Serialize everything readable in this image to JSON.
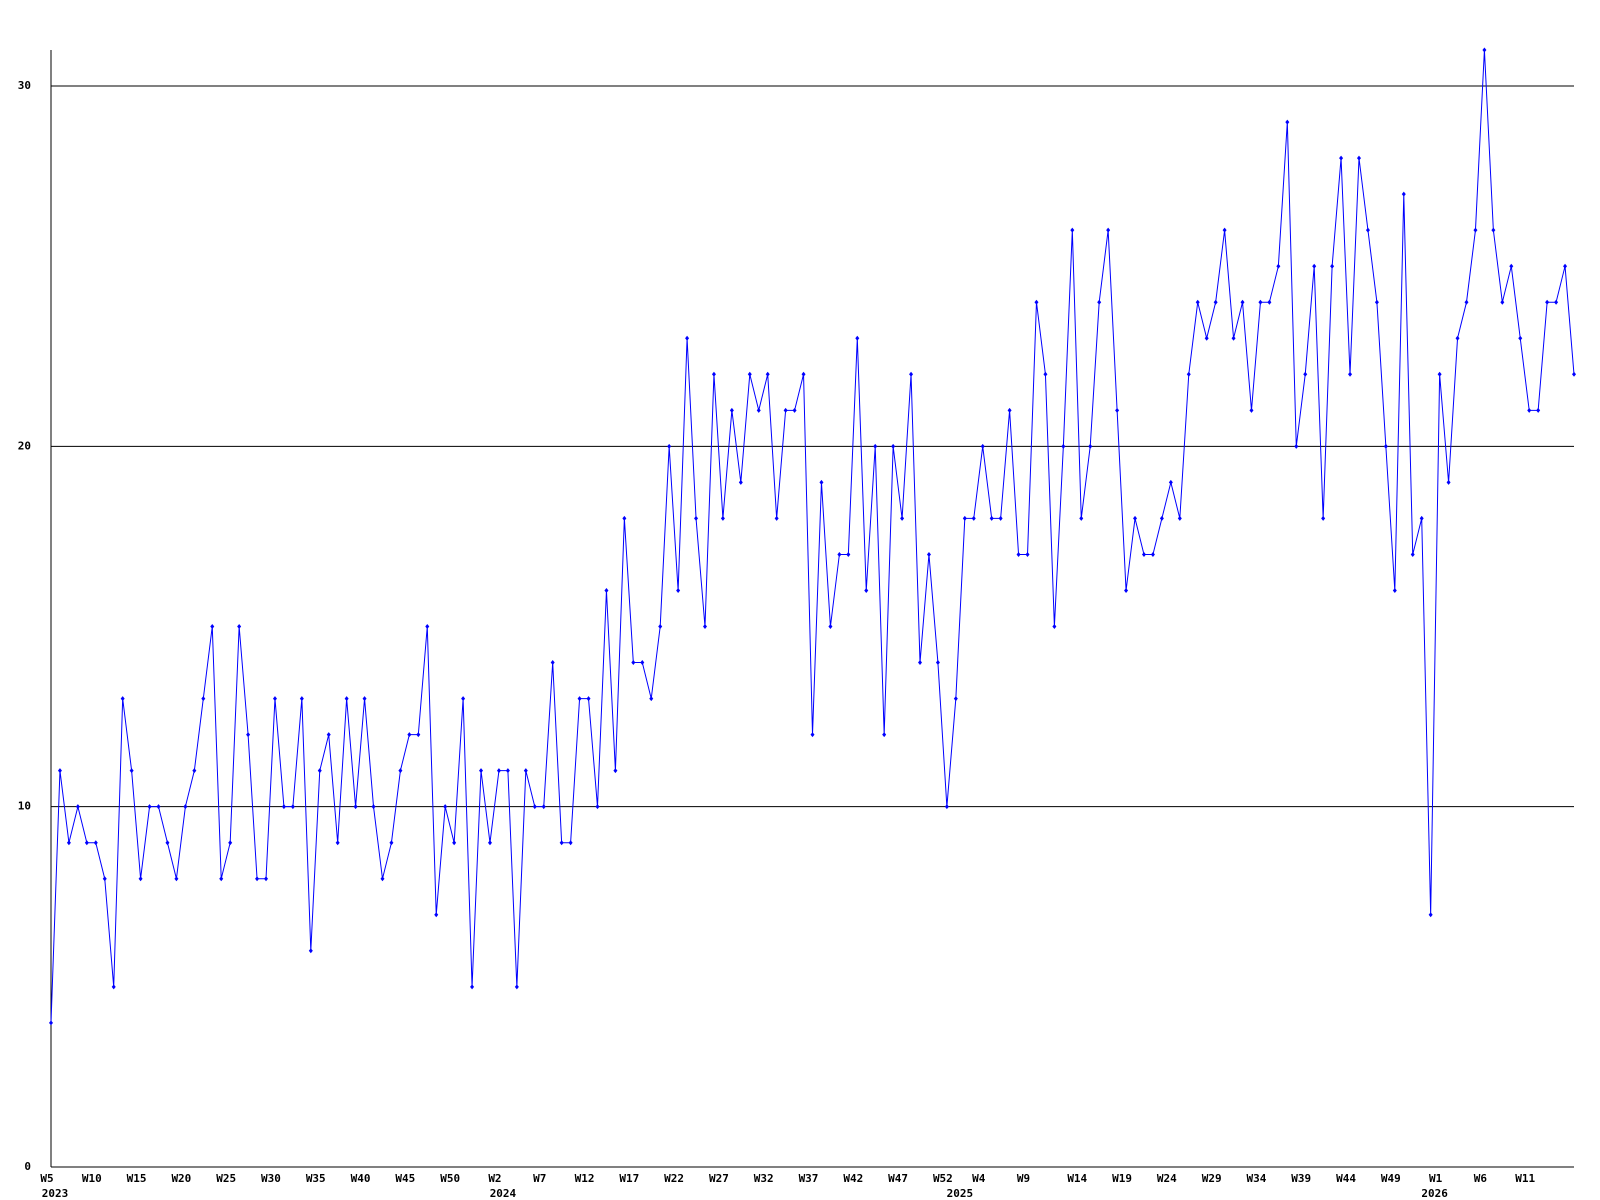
{
  "chart_data": {
    "type": "line",
    "categories": [
      "W5",
      null,
      null,
      null,
      null,
      "W10",
      null,
      null,
      null,
      null,
      "W15",
      null,
      null,
      null,
      null,
      "W20",
      null,
      null,
      null,
      null,
      "W25",
      null,
      null,
      null,
      null,
      "W30",
      null,
      null,
      null,
      null,
      "W35",
      null,
      null,
      null,
      null,
      "W40",
      null,
      null,
      null,
      null,
      "W45",
      null,
      null,
      null,
      null,
      "W50",
      null,
      null,
      null,
      null,
      "W2",
      null,
      null,
      null,
      null,
      "W7",
      null,
      null,
      null,
      null,
      "W12",
      null,
      null,
      null,
      null,
      "W17",
      null,
      null,
      null,
      null,
      "W22",
      null,
      null,
      null,
      null,
      "W27",
      null,
      null,
      null,
      null,
      "W32",
      null,
      null,
      null,
      null,
      "W37",
      null,
      null,
      null,
      null,
      "W42",
      null,
      null,
      null,
      null,
      "W47",
      null,
      null,
      null,
      null,
      "W52",
      null,
      null,
      null,
      "W4",
      null,
      null,
      null,
      null,
      "W9",
      null,
      null,
      null,
      null,
      null,
      "W14",
      null,
      null,
      null,
      null,
      "W19",
      null,
      null,
      null,
      null,
      "W24",
      null,
      null,
      null,
      null,
      "W29",
      null,
      null,
      null,
      null,
      "W34",
      null,
      null,
      null,
      null,
      "W39",
      null,
      null,
      null,
      null,
      "W44",
      null,
      null,
      null,
      null,
      "W49",
      null,
      null,
      null,
      null,
      "W1",
      null,
      null,
      null,
      null,
      "W6",
      null,
      null,
      null,
      null,
      "W11",
      null,
      null,
      null,
      null,
      null
    ],
    "category_years": [
      "2023",
      null,
      null,
      null,
      null,
      null,
      null,
      null,
      null,
      null,
      null,
      null,
      null,
      null,
      null,
      null,
      null,
      null,
      null,
      null,
      null,
      null,
      null,
      null,
      null,
      null,
      null,
      null,
      null,
      null,
      null,
      null,
      null,
      null,
      null,
      null,
      null,
      null,
      null,
      null,
      null,
      null,
      null,
      null,
      null,
      null,
      null,
      null,
      null,
      null,
      "2024",
      null,
      null,
      null,
      null,
      null,
      null,
      null,
      null,
      null,
      null,
      null,
      null,
      null,
      null,
      null,
      null,
      null,
      null,
      null,
      null,
      null,
      null,
      null,
      null,
      null,
      null,
      null,
      null,
      null,
      null,
      null,
      null,
      null,
      null,
      null,
      null,
      null,
      null,
      null,
      null,
      null,
      null,
      null,
      null,
      null,
      null,
      null,
      null,
      null,
      null,
      "2025",
      null,
      null,
      null,
      null,
      null,
      null,
      null,
      null,
      null,
      null,
      null,
      null,
      null,
      null,
      null,
      null,
      null,
      null,
      null,
      null,
      null,
      null,
      null,
      null,
      null,
      null,
      null,
      null,
      null,
      null,
      null,
      null,
      null,
      null,
      null,
      null,
      null,
      null,
      null,
      null,
      null,
      null,
      null,
      null,
      null,
      null,
      null,
      null,
      null,
      null,
      null,
      null,
      "2026",
      null,
      null,
      null,
      null,
      null,
      null,
      null,
      null,
      null,
      null,
      null,
      null,
      null,
      null,
      null
    ],
    "series": [
      {
        "color": "#0000ff",
        "values": [
          4,
          11,
          9,
          10,
          9,
          9,
          8,
          5,
          13,
          11,
          8,
          10,
          10,
          9,
          8,
          10,
          11,
          13,
          15,
          8,
          9,
          15,
          12,
          8,
          8,
          13,
          10,
          10,
          13,
          6,
          11,
          12,
          9,
          13,
          10,
          13,
          10,
          8,
          9,
          11,
          12,
          12,
          15,
          7,
          10,
          9,
          13,
          5,
          11,
          9,
          11,
          11,
          5,
          11,
          10,
          10,
          14,
          9,
          9,
          13,
          13,
          10,
          16,
          11,
          18,
          14,
          14,
          13,
          15,
          20,
          16,
          23,
          18,
          15,
          22,
          18,
          21,
          19,
          22,
          21,
          22,
          18,
          21,
          21,
          22,
          12,
          19,
          15,
          17,
          17,
          23,
          16,
          20,
          12,
          20,
          18,
          22,
          14,
          17,
          14,
          10,
          13,
          18,
          18,
          20,
          18,
          18,
          21,
          17,
          17,
          24,
          22,
          15,
          20,
          26,
          18,
          20,
          24,
          26,
          21,
          16,
          18,
          17,
          17,
          18,
          19,
          18,
          22,
          24,
          23,
          24,
          26,
          23,
          24,
          21,
          24,
          24,
          25,
          29,
          20,
          22,
          25,
          18,
          25,
          28,
          22,
          28,
          26,
          24,
          20,
          16,
          27,
          17,
          18,
          7,
          22,
          19,
          23,
          24,
          26,
          31,
          26,
          24,
          25,
          23,
          21,
          21,
          24,
          24,
          25,
          22
        ]
      }
    ],
    "ylim": [
      0,
      31
    ],
    "yticks": [
      0,
      10,
      20,
      30
    ],
    "grid": true
  }
}
